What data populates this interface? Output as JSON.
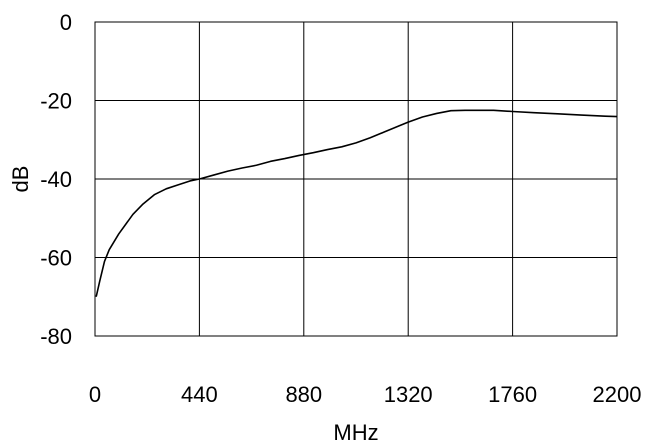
{
  "chart_data": {
    "type": "line",
    "xlabel": "MHz",
    "ylabel": "dB",
    "xlim": [
      0,
      2200
    ],
    "ylim": [
      -80,
      0
    ],
    "x_ticks": [
      "0",
      "440",
      "880",
      "1320",
      "1760",
      "2200"
    ],
    "y_ticks": [
      "0",
      "-20",
      "-40",
      "-60",
      "-80"
    ],
    "grid": true,
    "legend": "none",
    "series": [
      {
        "color": "#000000",
        "x": [
          5,
          20,
          40,
          60,
          80,
          100,
          130,
          160,
          200,
          250,
          300,
          350,
          400,
          440,
          500,
          560,
          620,
          680,
          740,
          800,
          860,
          920,
          980,
          1040,
          1100,
          1160,
          1220,
          1280,
          1320,
          1380,
          1440,
          1500,
          1560,
          1620,
          1680,
          1760,
          1850,
          1950,
          2050,
          2150,
          2200
        ],
        "y": [
          -70,
          -66,
          -61,
          -58,
          -56,
          -54,
          -51.5,
          -49,
          -46.5,
          -44,
          -42.5,
          -41.5,
          -40.5,
          -40,
          -39,
          -38,
          -37.2,
          -36.5,
          -35.5,
          -34.8,
          -34,
          -33.3,
          -32.5,
          -31.8,
          -30.8,
          -29.5,
          -28,
          -26.5,
          -25.5,
          -24.2,
          -23.3,
          -22.6,
          -22.5,
          -22.5,
          -22.5,
          -22.8,
          -23.1,
          -23.4,
          -23.7,
          -24,
          -24.1
        ]
      }
    ]
  }
}
